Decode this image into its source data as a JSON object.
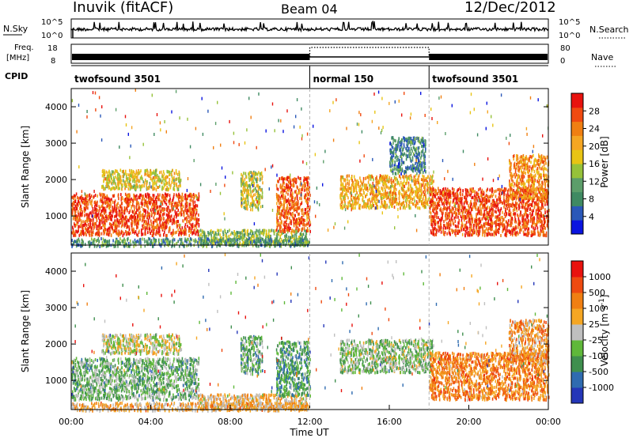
{
  "header": {
    "station": "Inuvik (fitACF)",
    "beam": "Beam 04",
    "date": "12/Dec/2012"
  },
  "nsky_panel": {
    "left_label": "N.Sky",
    "left_ticks": [
      "10^5",
      "10^0"
    ],
    "right_ticks": [
      "10^5",
      "10^0"
    ],
    "right_label": "N.Search",
    "right_label_style": "dotted"
  },
  "freq_panel": {
    "left_label_1": "Freq.",
    "left_label_2": "[MHz]",
    "left_ticks": [
      "18",
      "8"
    ],
    "right_ticks": [
      "80",
      "0"
    ],
    "right_label": "Nave",
    "right_label_style": "dotted"
  },
  "cpid": {
    "label": "CPID",
    "segments": [
      {
        "name": "twofsound 3501",
        "start_hr": 0,
        "end_hr": 12
      },
      {
        "name": "normal 150",
        "start_hr": 12,
        "end_hr": 18
      },
      {
        "name": "twofsound 3501",
        "start_hr": 18,
        "end_hr": 24
      }
    ]
  },
  "time_axis": {
    "label": "Time UT",
    "ticks": [
      "00:00",
      "04:00",
      "08:00",
      "12:00",
      "16:00",
      "20:00",
      "00:00"
    ]
  },
  "chart_data": [
    {
      "type": "heatmap",
      "panel": "power",
      "ylabel": "Slant Range [km]",
      "yticks": [
        "1000",
        "2000",
        "3000",
        "4000"
      ],
      "ylim": [
        200,
        4500
      ],
      "xlim_hours": [
        0,
        24
      ],
      "colorbar": {
        "label": "Power [dB]",
        "tick_labels": [
          "28",
          "24",
          "20",
          "16",
          "12",
          "8",
          "4"
        ],
        "colors": [
          "#0a14e0",
          "#2a58b8",
          "#3f8a62",
          "#5c9e6a",
          "#96c23a",
          "#e8c414",
          "#f5a623",
          "#f07f12",
          "#f04a10",
          "#e8120e"
        ]
      },
      "blobs": [
        {
          "t": [
            0,
            6.4
          ],
          "r": [
            500,
            1650
          ],
          "level": 0.86
        },
        {
          "t": [
            1.5,
            5.5
          ],
          "r": [
            1750,
            2300
          ],
          "level": 0.55
        },
        {
          "t": [
            6.4,
            11.9
          ],
          "r": [
            250,
            650
          ],
          "level": 0.42
        },
        {
          "t": [
            8.5,
            9.6
          ],
          "r": [
            1200,
            2250
          ],
          "level": 0.5
        },
        {
          "t": [
            10.3,
            12
          ],
          "r": [
            600,
            2100
          ],
          "level": 0.8
        },
        {
          "t": [
            13.5,
            18.2
          ],
          "r": [
            1250,
            2150
          ],
          "level": 0.65
        },
        {
          "t": [
            16,
            17.8
          ],
          "r": [
            2200,
            3200
          ],
          "level": 0.25
        },
        {
          "t": [
            18,
            24
          ],
          "r": [
            500,
            1800
          ],
          "level": 0.86
        },
        {
          "t": [
            22,
            24
          ],
          "r": [
            1500,
            2700
          ],
          "level": 0.72
        },
        {
          "t": [
            0,
            12
          ],
          "r": [
            200,
            420
          ],
          "level": 0.3
        }
      ]
    },
    {
      "type": "heatmap",
      "panel": "velocity",
      "ylabel": "Slant Range [km]",
      "yticks": [
        "1000",
        "2000",
        "3000",
        "4000"
      ],
      "ylim": [
        200,
        4500
      ],
      "xlim_hours": [
        0,
        24
      ],
      "colorbar": {
        "label": "Velocity [m s^-1]",
        "tick_labels": [
          "1000",
          "500",
          "100",
          "25",
          "-25",
          "-100",
          "-500",
          "-1000"
        ],
        "colors": [
          "#2436b8",
          "#2f6bb0",
          "#3f8f4e",
          "#5fb83a",
          "#bfbfbf",
          "#f5a623",
          "#f07f12",
          "#ee4a10",
          "#e8120e"
        ]
      },
      "blobs": [
        {
          "t": [
            0,
            6.4
          ],
          "r": [
            500,
            1650
          ],
          "level": 0.38
        },
        {
          "t": [
            1.5,
            5.5
          ],
          "r": [
            1750,
            2300
          ],
          "level": 0.5
        },
        {
          "t": [
            6.4,
            11.9
          ],
          "r": [
            250,
            650
          ],
          "level": 0.6
        },
        {
          "t": [
            8.5,
            9.6
          ],
          "r": [
            1200,
            2250
          ],
          "level": 0.35
        },
        {
          "t": [
            10.3,
            12
          ],
          "r": [
            600,
            2100
          ],
          "level": 0.3
        },
        {
          "t": [
            13.5,
            18.2
          ],
          "r": [
            1250,
            2150
          ],
          "level": 0.42
        },
        {
          "t": [
            18,
            24
          ],
          "r": [
            500,
            1800
          ],
          "level": 0.72
        },
        {
          "t": [
            22,
            24
          ],
          "r": [
            1500,
            2700
          ],
          "level": 0.66
        },
        {
          "t": [
            0,
            12
          ],
          "r": [
            200,
            420
          ],
          "level": 0.62
        }
      ]
    }
  ]
}
